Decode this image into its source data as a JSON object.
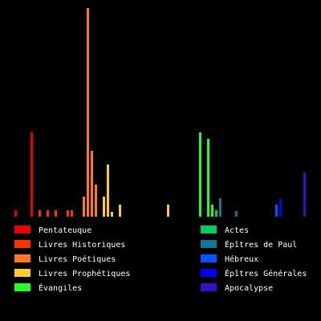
{
  "chart_data": {
    "type": "bar",
    "series": [
      {
        "name": "Pentateuque",
        "color": "#ee0000",
        "values": [
          8,
          0,
          0,
          0,
          105
        ]
      },
      {
        "name": "Livres Historiques",
        "color": "#ff3300",
        "values": [
          0,
          8,
          0,
          8,
          0,
          8,
          0,
          0,
          8,
          8,
          0
        ]
      },
      {
        "name": "Livres Poétiques",
        "color": "#ff7722",
        "values": [
          0,
          25,
          260,
          82,
          40,
          0
        ]
      },
      {
        "name": "Livres Prophétiques",
        "color": "#ffcc22",
        "values": [
          25,
          65,
          6,
          0,
          15,
          0,
          0,
          0,
          0,
          0,
          0,
          0,
          0,
          0,
          0,
          0,
          15,
          0,
          0,
          0,
          0,
          0,
          0,
          0
        ]
      },
      {
        "name": "Évangiles",
        "color": "#22ff22",
        "values": [
          105,
          0,
          97,
          15
        ]
      },
      {
        "name": "Actes",
        "color": "#00cc66",
        "values": [
          8
        ]
      },
      {
        "name": "Épîtres de Paul",
        "color": "#117799",
        "values": [
          23,
          0,
          0,
          0,
          7,
          0,
          0,
          0,
          0,
          0,
          0,
          0,
          0,
          0
        ]
      },
      {
        "name": "Hébreux",
        "color": "#0055ff",
        "values": [
          15
        ]
      },
      {
        "name": "Épîtres Générales",
        "color": "#0000ff",
        "values": [
          23,
          0,
          0,
          0,
          0,
          0
        ]
      },
      {
        "name": "Apocalypse",
        "color": "#3311cc",
        "values": [
          55
        ]
      }
    ]
  }
}
